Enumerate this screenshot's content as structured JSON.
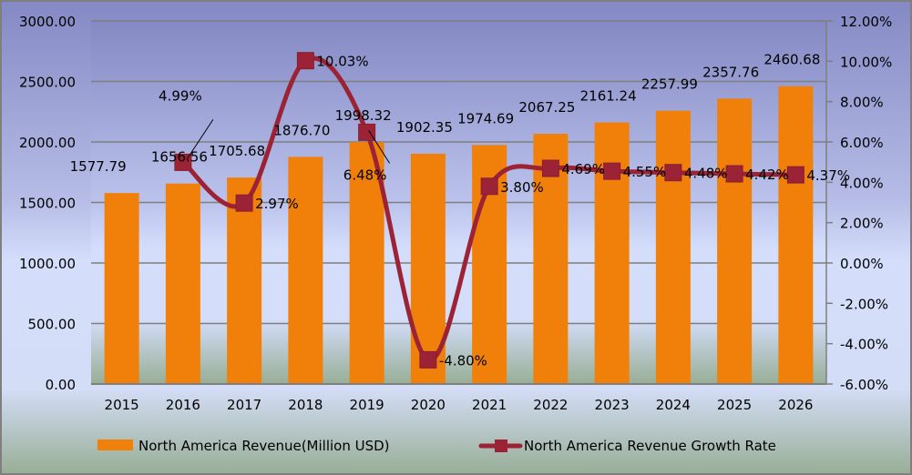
{
  "chart_data": {
    "type": "bar+line",
    "title": "",
    "categories": [
      "2015",
      "2016",
      "2017",
      "2018",
      "2019",
      "2020",
      "2021",
      "2022",
      "2023",
      "2024",
      "2025",
      "2026"
    ],
    "series": [
      {
        "name": "North America Revenue(Million USD)",
        "type": "bar",
        "axis": "left",
        "color": "#F0800A",
        "values": [
          1577.79,
          1656.56,
          1705.68,
          1876.7,
          1998.32,
          1902.35,
          1974.69,
          2067.25,
          2161.24,
          2257.99,
          2357.76,
          2460.68
        ],
        "labels": [
          "1577.79",
          "1656.56",
          "1705.68",
          "1876.70",
          "1998.32",
          "1902.35",
          "1974.69",
          "2067.25",
          "2161.24",
          "2257.99",
          "2357.76",
          "2460.68"
        ]
      },
      {
        "name": "North America Revenue Growth Rate",
        "type": "line",
        "axis": "right",
        "color": "#9B2335",
        "marker": "square",
        "smooth": true,
        "x_start_index": 1,
        "values": [
          4.99,
          2.97,
          10.03,
          6.48,
          -4.8,
          3.8,
          4.69,
          4.55,
          4.48,
          4.42,
          4.37
        ],
        "labels": [
          "4.99%",
          "2.97%",
          "10.03%",
          "6.48%",
          "-4.80%",
          "3.80%",
          "4.69%",
          "4.55%",
          "4.48%",
          "4.42%",
          "4.37%"
        ]
      }
    ],
    "y_left": {
      "min": 0,
      "max": 3000,
      "step": 500,
      "tick_labels": [
        "0.00",
        "500.00",
        "1000.00",
        "1500.00",
        "2000.00",
        "2500.00",
        "3000.00"
      ]
    },
    "y_right": {
      "min": -6,
      "max": 12,
      "step": 2,
      "tick_labels": [
        "-6.00%",
        "-4.00%",
        "-2.00%",
        "0.00%",
        "2.00%",
        "4.00%",
        "6.00%",
        "8.00%",
        "10.00%",
        "12.00%"
      ]
    },
    "grid": true,
    "legend": {
      "position": "bottom",
      "entries": [
        "North America Revenue(Million USD)",
        "North America Revenue Growth Rate"
      ]
    }
  }
}
